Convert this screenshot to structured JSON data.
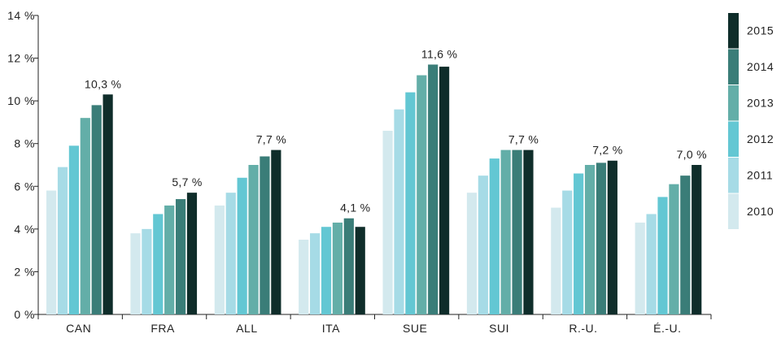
{
  "chart_data": {
    "type": "bar",
    "categories": [
      "CAN",
      "FRA",
      "ALL",
      "ITA",
      "SUE",
      "SUI",
      "R.-U.",
      "É.-U."
    ],
    "series": [
      {
        "name": "2010",
        "color": "#d3e9ee",
        "values": [
          5.8,
          3.8,
          5.1,
          3.5,
          8.6,
          5.7,
          5.0,
          4.3
        ]
      },
      {
        "name": "2011",
        "color": "#a6dbe6",
        "values": [
          6.9,
          4.0,
          5.7,
          3.8,
          9.6,
          6.5,
          5.8,
          4.7
        ]
      },
      {
        "name": "2012",
        "color": "#63c7d3",
        "values": [
          7.9,
          4.7,
          6.4,
          4.1,
          10.4,
          7.3,
          6.6,
          5.5
        ]
      },
      {
        "name": "2013",
        "color": "#63aea8",
        "values": [
          9.2,
          5.1,
          7.0,
          4.3,
          11.2,
          7.7,
          7.0,
          6.1
        ]
      },
      {
        "name": "2014",
        "color": "#3a7d78",
        "values": [
          9.8,
          5.4,
          7.4,
          4.5,
          11.7,
          7.7,
          7.1,
          6.5
        ]
      },
      {
        "name": "2015",
        "color": "#0f2d2a",
        "values": [
          10.3,
          5.7,
          7.7,
          4.1,
          11.6,
          7.7,
          7.2,
          7.0
        ]
      }
    ],
    "data_labels": [
      "10,3 %",
      "5,7 %",
      "7,7 %",
      "4,1 %",
      "11,6 %",
      "7,7 %",
      "7,2 %",
      "7,0 %"
    ],
    "y_ticks": [
      "0 %",
      "2 %",
      "4 %",
      "6 %",
      "8 %",
      "10 %",
      "12 %",
      "14 %"
    ],
    "y_tick_values": [
      0,
      2,
      4,
      6,
      8,
      10,
      12,
      14
    ],
    "ylim": [
      0,
      14
    ],
    "legend_order": [
      "2015",
      "2014",
      "2013",
      "2012",
      "2011",
      "2010"
    ],
    "legend_position": "right",
    "grid": false,
    "title": "",
    "xlabel": "",
    "ylabel": ""
  }
}
